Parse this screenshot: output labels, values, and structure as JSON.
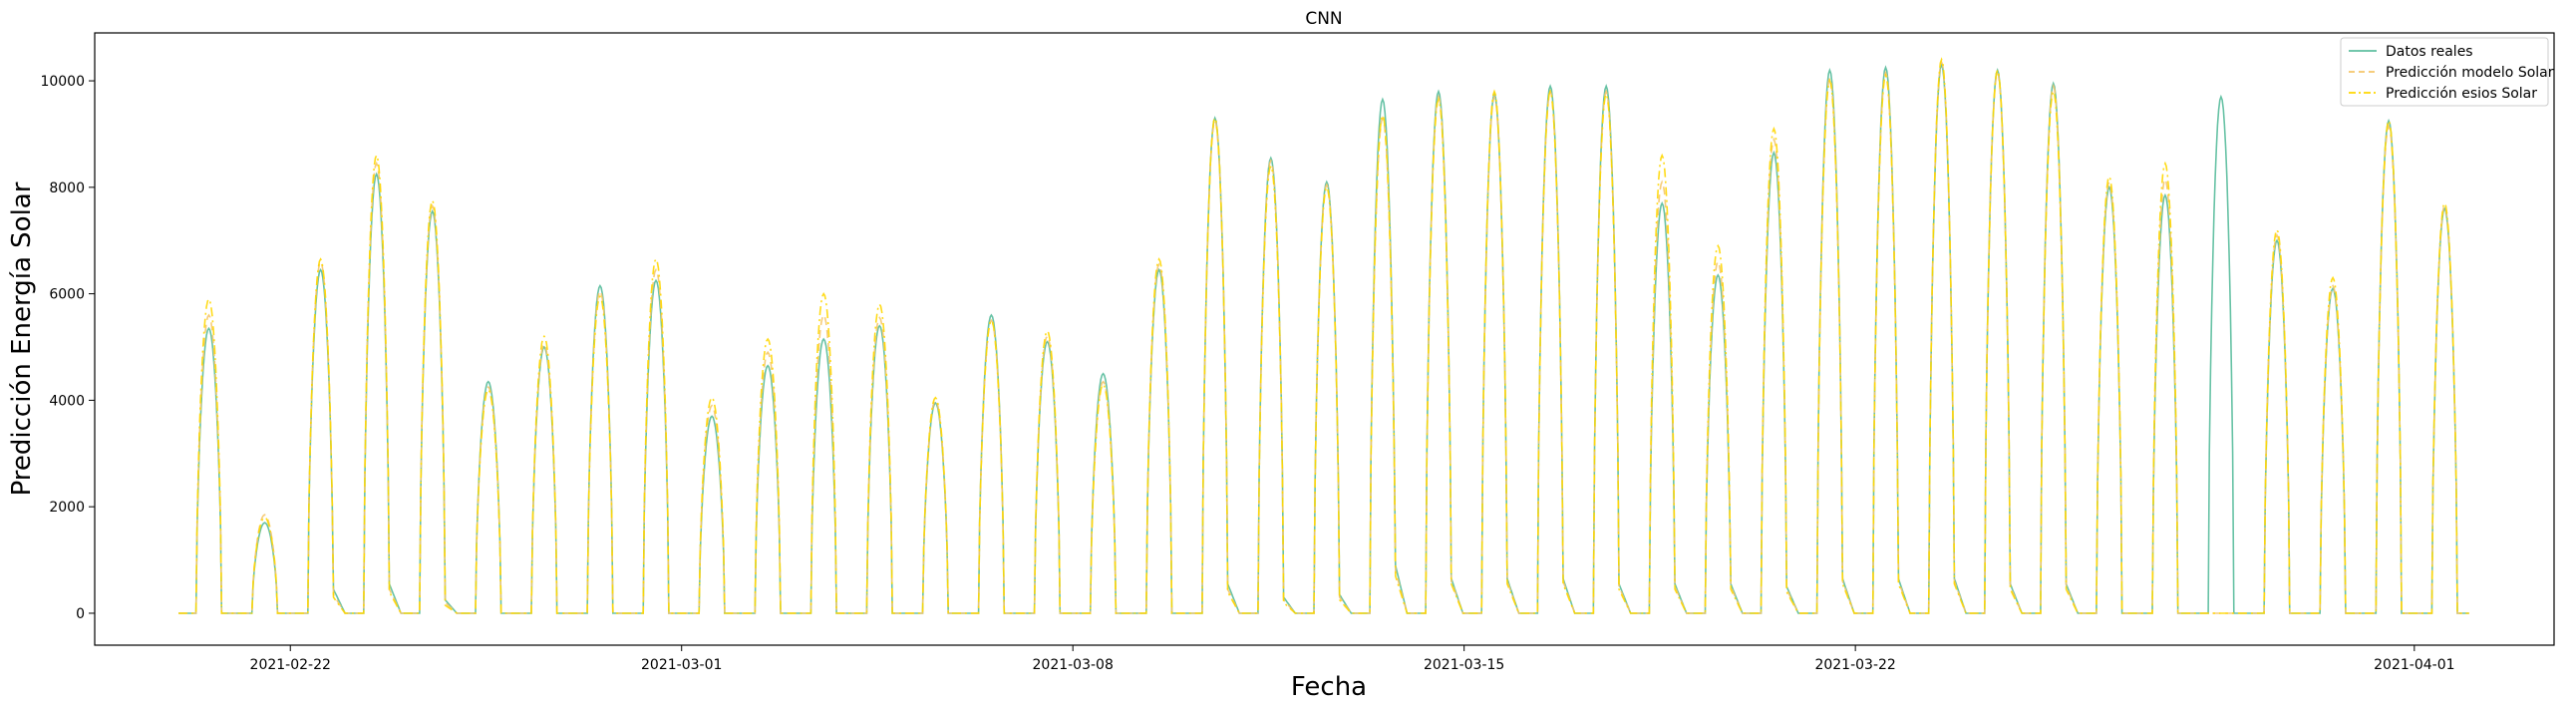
{
  "chart_data": {
    "type": "line",
    "title": "CNN",
    "xlabel": "Fecha",
    "ylabel": "Predicción Energía Solar",
    "x_start": "2021-02-20 00:00",
    "x_end": "2021-04-02 00:00",
    "xlim": [
      "2021-02-18 12:00",
      "2021-04-03 12:00"
    ],
    "ylim": [
      -600,
      10900
    ],
    "x_ticks": [
      {
        "date": "2021-02-22",
        "label": "2021-02-22"
      },
      {
        "date": "2021-03-01",
        "label": "2021-03-01"
      },
      {
        "date": "2021-03-08",
        "label": "2021-03-08"
      },
      {
        "date": "2021-03-15",
        "label": "2021-03-15"
      },
      {
        "date": "2021-03-22",
        "label": "2021-03-22"
      },
      {
        "date": "2021-04-01",
        "label": "2021-04-01"
      }
    ],
    "y_ticks": [
      0,
      2000,
      4000,
      6000,
      8000,
      10000
    ],
    "grid": false,
    "legend_position": "top-right",
    "series": [
      {
        "name": "Datos reales",
        "color": "#5fbfa0",
        "style": "solid",
        "daily_peak": [
          5350,
          1700,
          6450,
          8250,
          7550,
          4350,
          5000,
          6150,
          6250,
          3700,
          4650,
          5150,
          5400,
          3950,
          5600,
          5100,
          4500,
          6450,
          9300,
          8550,
          8100,
          9650,
          9800,
          9750,
          9900,
          9900,
          7700,
          6350,
          8650,
          10200,
          10250,
          10300,
          10200,
          9950,
          8000,
          7850,
          9700,
          7000,
          6100,
          9250,
          7600
        ],
        "daily_tail": [
          0,
          0,
          450,
          550,
          250,
          0,
          0,
          0,
          0,
          0,
          0,
          0,
          0,
          0,
          0,
          0,
          0,
          0,
          550,
          300,
          350,
          900,
          650,
          650,
          650,
          550,
          550,
          550,
          500,
          650,
          650,
          650,
          550,
          550,
          0,
          0,
          0,
          0,
          0,
          0,
          0
        ]
      },
      {
        "name": "Predicción modelo Solar",
        "color": "#f5c66a",
        "style": "dashed",
        "daily_peak": [
          5600,
          1850,
          6600,
          8450,
          7650,
          4250,
          5050,
          6050,
          6450,
          3900,
          4900,
          5600,
          5550,
          4000,
          5500,
          5200,
          4350,
          6550,
          9250,
          8500,
          8050,
          9300,
          9700,
          9700,
          9800,
          9800,
          8100,
          6600,
          8900,
          10050,
          10150,
          10350,
          10150,
          9900,
          8100,
          8150,
          0,
          7100,
          6150,
          9150,
          7650
        ],
        "daily_tail": [
          0,
          0,
          350,
          450,
          200,
          0,
          0,
          0,
          0,
          0,
          0,
          0,
          0,
          0,
          0,
          0,
          0,
          0,
          450,
          250,
          300,
          800,
          600,
          600,
          600,
          500,
          500,
          500,
          450,
          600,
          600,
          600,
          500,
          500,
          0,
          0,
          0,
          0,
          0,
          0,
          0
        ]
      },
      {
        "name": "Predicción esios Solar",
        "color": "#ffd700",
        "style": "dashdot",
        "daily_peak": [
          5900,
          1800,
          6650,
          8600,
          7750,
          4200,
          5200,
          5950,
          6650,
          4050,
          5150,
          6000,
          5800,
          4050,
          5500,
          5300,
          4300,
          6650,
          9300,
          8400,
          8000,
          9350,
          9650,
          9800,
          9800,
          9750,
          8600,
          6900,
          9100,
          10000,
          10100,
          10400,
          10200,
          9800,
          8200,
          8450,
          0,
          7200,
          6300,
          9250,
          7700
        ],
        "daily_tail": [
          0,
          0,
          300,
          400,
          150,
          0,
          0,
          0,
          0,
          0,
          0,
          0,
          0,
          0,
          0,
          0,
          0,
          0,
          400,
          200,
          250,
          700,
          550,
          550,
          550,
          450,
          450,
          450,
          400,
          550,
          550,
          550,
          450,
          450,
          0,
          0,
          0,
          0,
          0,
          0,
          0
        ]
      }
    ]
  }
}
